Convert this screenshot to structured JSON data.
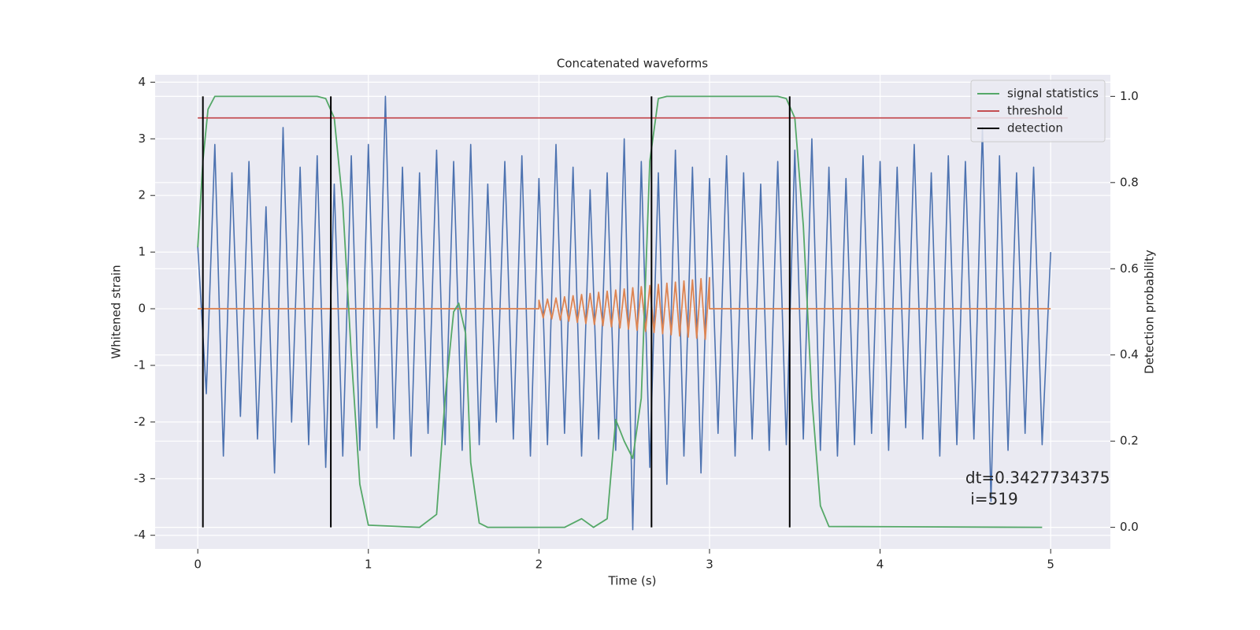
{
  "chart_data": {
    "type": "line",
    "title": "Concatenated waveforms",
    "xlabel": "Time (s)",
    "ylabel": "Whitened strain",
    "y2label": "Detection probability",
    "xlim": [
      -0.25,
      5.35
    ],
    "xticks": [
      0,
      1,
      2,
      3,
      4,
      5
    ],
    "ylim": [
      -4.24,
      4.13
    ],
    "yticks": [
      -4,
      -3,
      -2,
      -1,
      0,
      1,
      2,
      3,
      4
    ],
    "y2lim": [
      -0.05,
      1.05
    ],
    "y2ticks": [
      {
        "value": 0,
        "label": "0.0"
      },
      0.2,
      0.4,
      0.6,
      0.8,
      {
        "value": 1,
        "label": "1.0"
      }
    ],
    "grid": true,
    "legend": "upper right",
    "series": [
      {
        "color": "#4c72b0",
        "axis": "y",
        "x": [
          0,
          0.05,
          0.1,
          0.15,
          0.2,
          0.25,
          0.3,
          0.35,
          0.4,
          0.45,
          0.5,
          0.55,
          0.6,
          0.65,
          0.7,
          0.75,
          0.8,
          0.85,
          0.9,
          0.95,
          1,
          1.05,
          1.1,
          1.15,
          1.2,
          1.25,
          1.3,
          1.35,
          1.4,
          1.45,
          1.5,
          1.55,
          1.6,
          1.65,
          1.7,
          1.75,
          1.8,
          1.85,
          1.9,
          1.95,
          2,
          2.05,
          2.1,
          2.15,
          2.2,
          2.25,
          2.3,
          2.35,
          2.4,
          2.45,
          2.5,
          2.55,
          2.6,
          2.65,
          2.7,
          2.75,
          2.8,
          2.85,
          2.9,
          2.95,
          3,
          3.05,
          3.1,
          3.15,
          3.2,
          3.25,
          3.3,
          3.35,
          3.4,
          3.45,
          3.5,
          3.55,
          3.6,
          3.65,
          3.7,
          3.75,
          3.8,
          3.85,
          3.9,
          3.95,
          4,
          4.05,
          4.1,
          4.15,
          4.2,
          4.25,
          4.3,
          4.35,
          4.4,
          4.45,
          4.5,
          4.55,
          4.6,
          4.65,
          4.7,
          4.75,
          4.8,
          4.85,
          4.9,
          4.95,
          5
        ],
        "values": [
          1.1,
          -1.5,
          2.9,
          -2.6,
          2.4,
          -1.9,
          2.6,
          -2.3,
          1.8,
          -2.9,
          3.2,
          -2.0,
          2.5,
          -2.4,
          2.7,
          -2.8,
          2.2,
          -2.6,
          2.7,
          -2.5,
          2.9,
          -2.1,
          3.75,
          -2.3,
          2.5,
          -2.6,
          2.4,
          -2.2,
          2.8,
          -2.4,
          2.6,
          -2.5,
          2.9,
          -2.4,
          2.2,
          -2.0,
          2.6,
          -2.3,
          2.7,
          -2.6,
          2.3,
          -2.4,
          2.9,
          -2.2,
          2.5,
          -2.6,
          2.1,
          -2.3,
          2.4,
          -2.5,
          3.0,
          -3.9,
          2.6,
          -2.8,
          2.4,
          -3.1,
          2.8,
          -2.6,
          2.5,
          -2.9,
          2.3,
          -2.2,
          2.7,
          -2.6,
          2.4,
          -2.3,
          2.2,
          -2.5,
          2.6,
          -2.4,
          2.8,
          -2.3,
          3.0,
          -2.5,
          2.5,
          -2.6,
          2.3,
          -2.4,
          2.7,
          -2.2,
          2.6,
          -2.5,
          2.5,
          -2.1,
          2.9,
          -2.3,
          2.4,
          -2.6,
          2.7,
          -2.4,
          2.6,
          -2.3,
          3.2,
          -3.4,
          2.7,
          -2.5,
          2.4,
          -2.2,
          2.5,
          -2.4,
          1.0
        ]
      },
      {
        "color": "#dd8452",
        "axis": "y",
        "x": [
          0,
          2,
          2,
          2.025,
          2.05,
          2.075,
          2.1,
          2.125,
          2.15,
          2.175,
          2.2,
          2.225,
          2.25,
          2.275,
          2.3,
          2.325,
          2.35,
          2.375,
          2.4,
          2.425,
          2.45,
          2.475,
          2.5,
          2.525,
          2.55,
          2.575,
          2.6,
          2.625,
          2.65,
          2.675,
          2.7,
          2.725,
          2.75,
          2.775,
          2.8,
          2.825,
          2.85,
          2.875,
          2.9,
          2.925,
          2.95,
          2.975,
          3,
          3,
          5
        ],
        "values": [
          0,
          0,
          0.15,
          -0.16,
          0.17,
          -0.18,
          0.19,
          -0.2,
          0.21,
          -0.22,
          0.23,
          -0.24,
          0.25,
          -0.26,
          0.27,
          -0.28,
          0.29,
          -0.3,
          0.31,
          -0.32,
          0.33,
          -0.34,
          0.35,
          -0.36,
          0.37,
          -0.38,
          0.39,
          -0.4,
          0.41,
          -0.42,
          0.43,
          -0.44,
          0.45,
          -0.46,
          0.47,
          -0.48,
          0.49,
          -0.5,
          0.51,
          -0.52,
          0.53,
          -0.54,
          0.55,
          0,
          0
        ]
      },
      {
        "name": "signal statistics",
        "color": "#55a868",
        "axis": "y2",
        "x": [
          0,
          0.03,
          0.06,
          0.1,
          0.15,
          0.7,
          0.75,
          0.8,
          0.85,
          0.9,
          0.95,
          1.0,
          1.3,
          1.4,
          1.45,
          1.5,
          1.53,
          1.57,
          1.6,
          1.65,
          1.7,
          2.15,
          2.25,
          2.32,
          2.4,
          2.45,
          2.5,
          2.55,
          2.6,
          2.65,
          2.7,
          2.75,
          3.4,
          3.45,
          3.5,
          3.55,
          3.6,
          3.65,
          3.7,
          4.95
        ],
        "values": [
          0.65,
          0.85,
          0.97,
          1.0,
          1.0,
          1.0,
          0.995,
          0.95,
          0.75,
          0.4,
          0.1,
          0.005,
          0.0,
          0.03,
          0.3,
          0.5,
          0.52,
          0.45,
          0.15,
          0.01,
          0.0,
          0.0,
          0.02,
          0.0,
          0.02,
          0.25,
          0.2,
          0.16,
          0.3,
          0.85,
          0.995,
          1.0,
          1.0,
          0.995,
          0.95,
          0.7,
          0.3,
          0.05,
          0.002,
          0.0
        ]
      },
      {
        "name": "threshold",
        "color": "#c44e52",
        "axis": "y2",
        "x": [
          0,
          5.1
        ],
        "values": [
          0.95,
          0.95
        ]
      },
      {
        "name": "detection",
        "color": "#000000",
        "axis": "y2",
        "kind": "vline",
        "x": [
          0.03,
          0.78,
          2.66,
          3.47
        ],
        "ymin": 0,
        "ymax": 1
      }
    ],
    "annotation": {
      "text": [
        "dt=0.3427734375",
        " i=519"
      ],
      "x": 4.5,
      "y": -3.0
    }
  }
}
